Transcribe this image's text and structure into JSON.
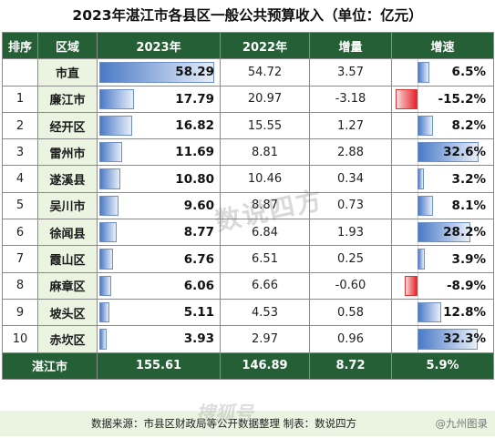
{
  "title": "2023年湛江市各县区一般公共预算收入（单位：亿元）",
  "headers": {
    "rank": "排序",
    "region": "区域",
    "y2023": "2023年",
    "y2022": "2022年",
    "delta": "增量",
    "growth": "增速"
  },
  "rows": [
    {
      "rank": "",
      "region": "市直",
      "v2023": "58.29",
      "v2022": "54.72",
      "delta": "3.57",
      "growth": "6.5%"
    },
    {
      "rank": "1",
      "region": "廉江市",
      "v2023": "17.79",
      "v2022": "20.97",
      "delta": "-3.18",
      "growth": "-15.2%"
    },
    {
      "rank": "2",
      "region": "经开区",
      "v2023": "16.82",
      "v2022": "15.55",
      "delta": "1.27",
      "growth": "8.2%"
    },
    {
      "rank": "3",
      "region": "雷州市",
      "v2023": "11.69",
      "v2022": "8.81",
      "delta": "2.88",
      "growth": "32.6%"
    },
    {
      "rank": "4",
      "region": "遂溪县",
      "v2023": "10.80",
      "v2022": "10.46",
      "delta": "0.34",
      "growth": "3.2%"
    },
    {
      "rank": "5",
      "region": "吴川市",
      "v2023": "9.60",
      "v2022": "8.87",
      "delta": "0.73",
      "growth": "8.1%"
    },
    {
      "rank": "6",
      "region": "徐闻县",
      "v2023": "8.77",
      "v2022": "6.84",
      "delta": "1.93",
      "growth": "28.2%"
    },
    {
      "rank": "7",
      "region": "霞山区",
      "v2023": "6.76",
      "v2022": "6.51",
      "delta": "0.25",
      "growth": "3.9%"
    },
    {
      "rank": "8",
      "region": "麻章区",
      "v2023": "6.06",
      "v2022": "6.66",
      "delta": "-0.60",
      "growth": "-8.9%"
    },
    {
      "rank": "9",
      "region": "坡头区",
      "v2023": "5.11",
      "v2022": "4.53",
      "delta": "0.58",
      "growth": "12.8%"
    },
    {
      "rank": "10",
      "region": "赤坎区",
      "v2023": "3.93",
      "v2022": "2.97",
      "delta": "0.96",
      "growth": "32.3%"
    }
  ],
  "total": {
    "region": "湛江市",
    "v2023": "155.61",
    "v2022": "146.89",
    "delta": "8.72",
    "growth": "5.9%"
  },
  "source": "数据来源：市县区财政局等公开数据整理    制表：数说四方",
  "credit": "@九州图录",
  "watermark": "数说四方",
  "watermark2": "搜狐号"
}
